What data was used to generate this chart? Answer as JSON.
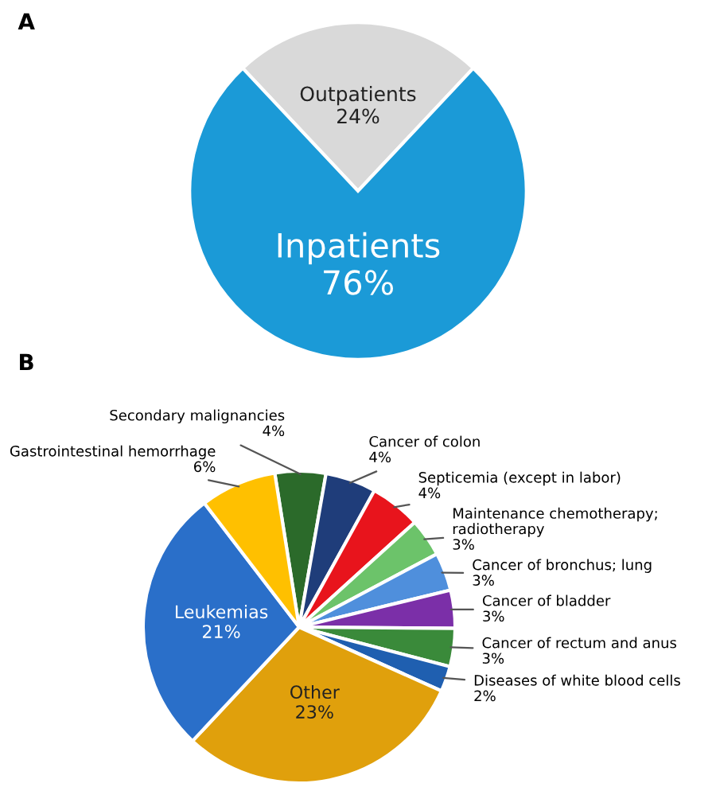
{
  "chart_data": [
    {
      "type": "pie",
      "title": "A",
      "categories": [
        "Outpatients",
        "Inpatients"
      ],
      "values": [
        24,
        76
      ],
      "value_labels": [
        "24%",
        "76%"
      ],
      "colors": [
        "#d9d9d9",
        "#1b9ad7"
      ]
    },
    {
      "type": "pie",
      "title": "B",
      "categories": [
        "Secondary malignancies",
        "Cancer of colon",
        "Septicemia (except in labor)",
        "Maintenance chemotherapy; radiotherapy",
        "Cancer of bronchus; lung",
        "Cancer of bladder",
        "Cancer of rectum and anus",
        "Diseases of white blood cells",
        "Other",
        "Leukemias",
        "Gastrointestinal hemorrhage"
      ],
      "values": [
        4,
        4,
        4,
        3,
        3,
        3,
        3,
        2,
        23,
        21,
        6
      ],
      "value_labels": [
        "4%",
        "4%",
        "4%",
        "3%",
        "3%",
        "3%",
        "3%",
        "2%",
        "23%",
        "21%",
        "6%"
      ],
      "colors": [
        "#2b6a2a",
        "#1f3d7a",
        "#e8141c",
        "#6cc36a",
        "#4f8fdc",
        "#7b2fa8",
        "#3a8a3a",
        "#1f5fb0",
        "#e0a00c",
        "#2a6fc9",
        "#ffc000"
      ]
    }
  ]
}
